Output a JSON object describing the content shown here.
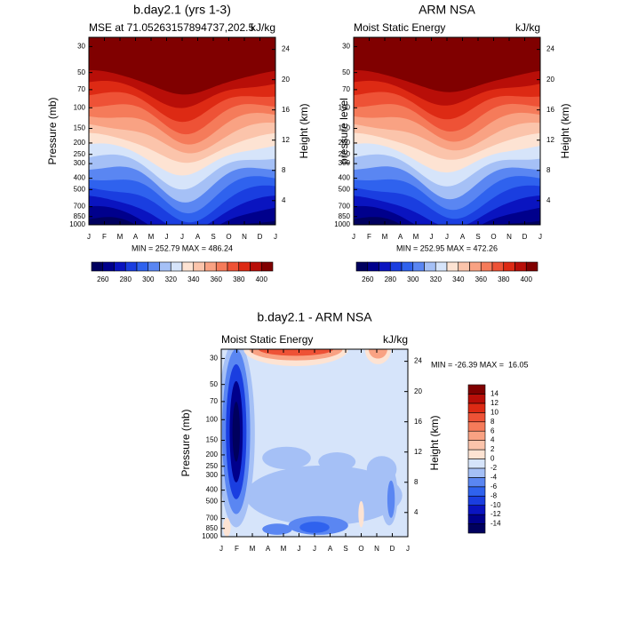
{
  "chart_data": [
    {
      "type": "contour",
      "title": "b.day2.1 (yrs 1-3)",
      "subtitle": "MSE at 71.05263157894737,202.5",
      "units": "kJ/kg",
      "ylabel": "Pressure (mb)",
      "y2label": "Height (km)",
      "stats": "MIN = 252.79 MAX = 486.24",
      "categories": [
        "J",
        "F",
        "M",
        "A",
        "M",
        "J",
        "J",
        "A",
        "S",
        "O",
        "N",
        "D",
        "J"
      ],
      "ylim": [
        1000,
        25
      ],
      "log_y": true,
      "yticks": [
        30,
        50,
        70,
        100,
        150,
        200,
        250,
        300,
        400,
        500,
        700,
        850,
        1000
      ],
      "y2lim": [
        0.8,
        25.6
      ],
      "y2ticks": [
        4,
        8,
        12,
        16,
        20,
        24
      ],
      "levels": [
        260,
        270,
        280,
        290,
        300,
        310,
        320,
        330,
        340,
        350,
        360,
        370,
        380,
        390,
        400
      ],
      "colorbar_ticks": [
        260,
        280,
        300,
        320,
        340,
        360,
        380,
        400
      ],
      "colors": [
        "#00005e",
        "#00008c",
        "#0a14c0",
        "#1a3ee0",
        "#2f62ee",
        "#5a86f2",
        "#a5c0f6",
        "#d6e4fa",
        "#fde3d3",
        "#fbc4ab",
        "#f9a283",
        "#f57b5a",
        "#ee5236",
        "#dd2a14",
        "#b80e08",
        "#800000"
      ]
    },
    {
      "type": "contour",
      "title": "ARM NSA",
      "subtitle": "Moist Static Energy",
      "units": "kJ/kg",
      "ylabel": "pressure level",
      "y2label": "Height (km)",
      "stats": "MIN = 252.95 MAX = 472.26",
      "categories": [
        "J",
        "F",
        "M",
        "A",
        "M",
        "J",
        "J",
        "A",
        "S",
        "O",
        "N",
        "D",
        "J"
      ],
      "ylim": [
        1000,
        25
      ],
      "log_y": true,
      "yticks": [
        30,
        50,
        70,
        100,
        150,
        200,
        250,
        300,
        400,
        500,
        700,
        850,
        1000
      ],
      "y2lim": [
        0.8,
        25.6
      ],
      "y2ticks": [
        4,
        8,
        12,
        16,
        20,
        24
      ],
      "levels": [
        260,
        270,
        280,
        290,
        300,
        310,
        320,
        330,
        340,
        350,
        360,
        370,
        380,
        390,
        400
      ],
      "colorbar_ticks": [
        260,
        280,
        300,
        320,
        340,
        360,
        380,
        400
      ],
      "colors": [
        "#00005e",
        "#00008c",
        "#0a14c0",
        "#1a3ee0",
        "#2f62ee",
        "#5a86f2",
        "#a5c0f6",
        "#d6e4fa",
        "#fde3d3",
        "#fbc4ab",
        "#f9a283",
        "#f57b5a",
        "#ee5236",
        "#dd2a14",
        "#b80e08",
        "#800000"
      ]
    },
    {
      "type": "contour",
      "title": "b.day2.1 - ARM NSA",
      "subtitle": "Moist Static Energy",
      "units": "kJ/kg",
      "ylabel": "Pressure (mb)",
      "y2label": "Height (km)",
      "stats": "MIN = -26.39 MAX =  16.05",
      "categories": [
        "J",
        "F",
        "M",
        "A",
        "M",
        "J",
        "J",
        "A",
        "S",
        "O",
        "N",
        "D",
        "J"
      ],
      "ylim": [
        1000,
        25
      ],
      "log_y": true,
      "yticks": [
        30,
        50,
        70,
        100,
        150,
        200,
        250,
        300,
        400,
        500,
        700,
        850,
        1000
      ],
      "y2lim": [
        0.8,
        25.6
      ],
      "y2ticks": [
        4,
        8,
        12,
        16,
        20,
        24
      ],
      "levels": [
        -14,
        -12,
        -10,
        -8,
        -6,
        -4,
        -2,
        0,
        2,
        4,
        6,
        8,
        10,
        12,
        14
      ],
      "colors": [
        "#00005e",
        "#00008c",
        "#0a14c0",
        "#1a3ee0",
        "#2f62ee",
        "#5a86f2",
        "#a5c0f6",
        "#d6e4fa",
        "#fde3d3",
        "#fbc4ab",
        "#f9a283",
        "#f57b5a",
        "#ee5236",
        "#dd2a14",
        "#b80e08",
        "#800000"
      ]
    }
  ]
}
